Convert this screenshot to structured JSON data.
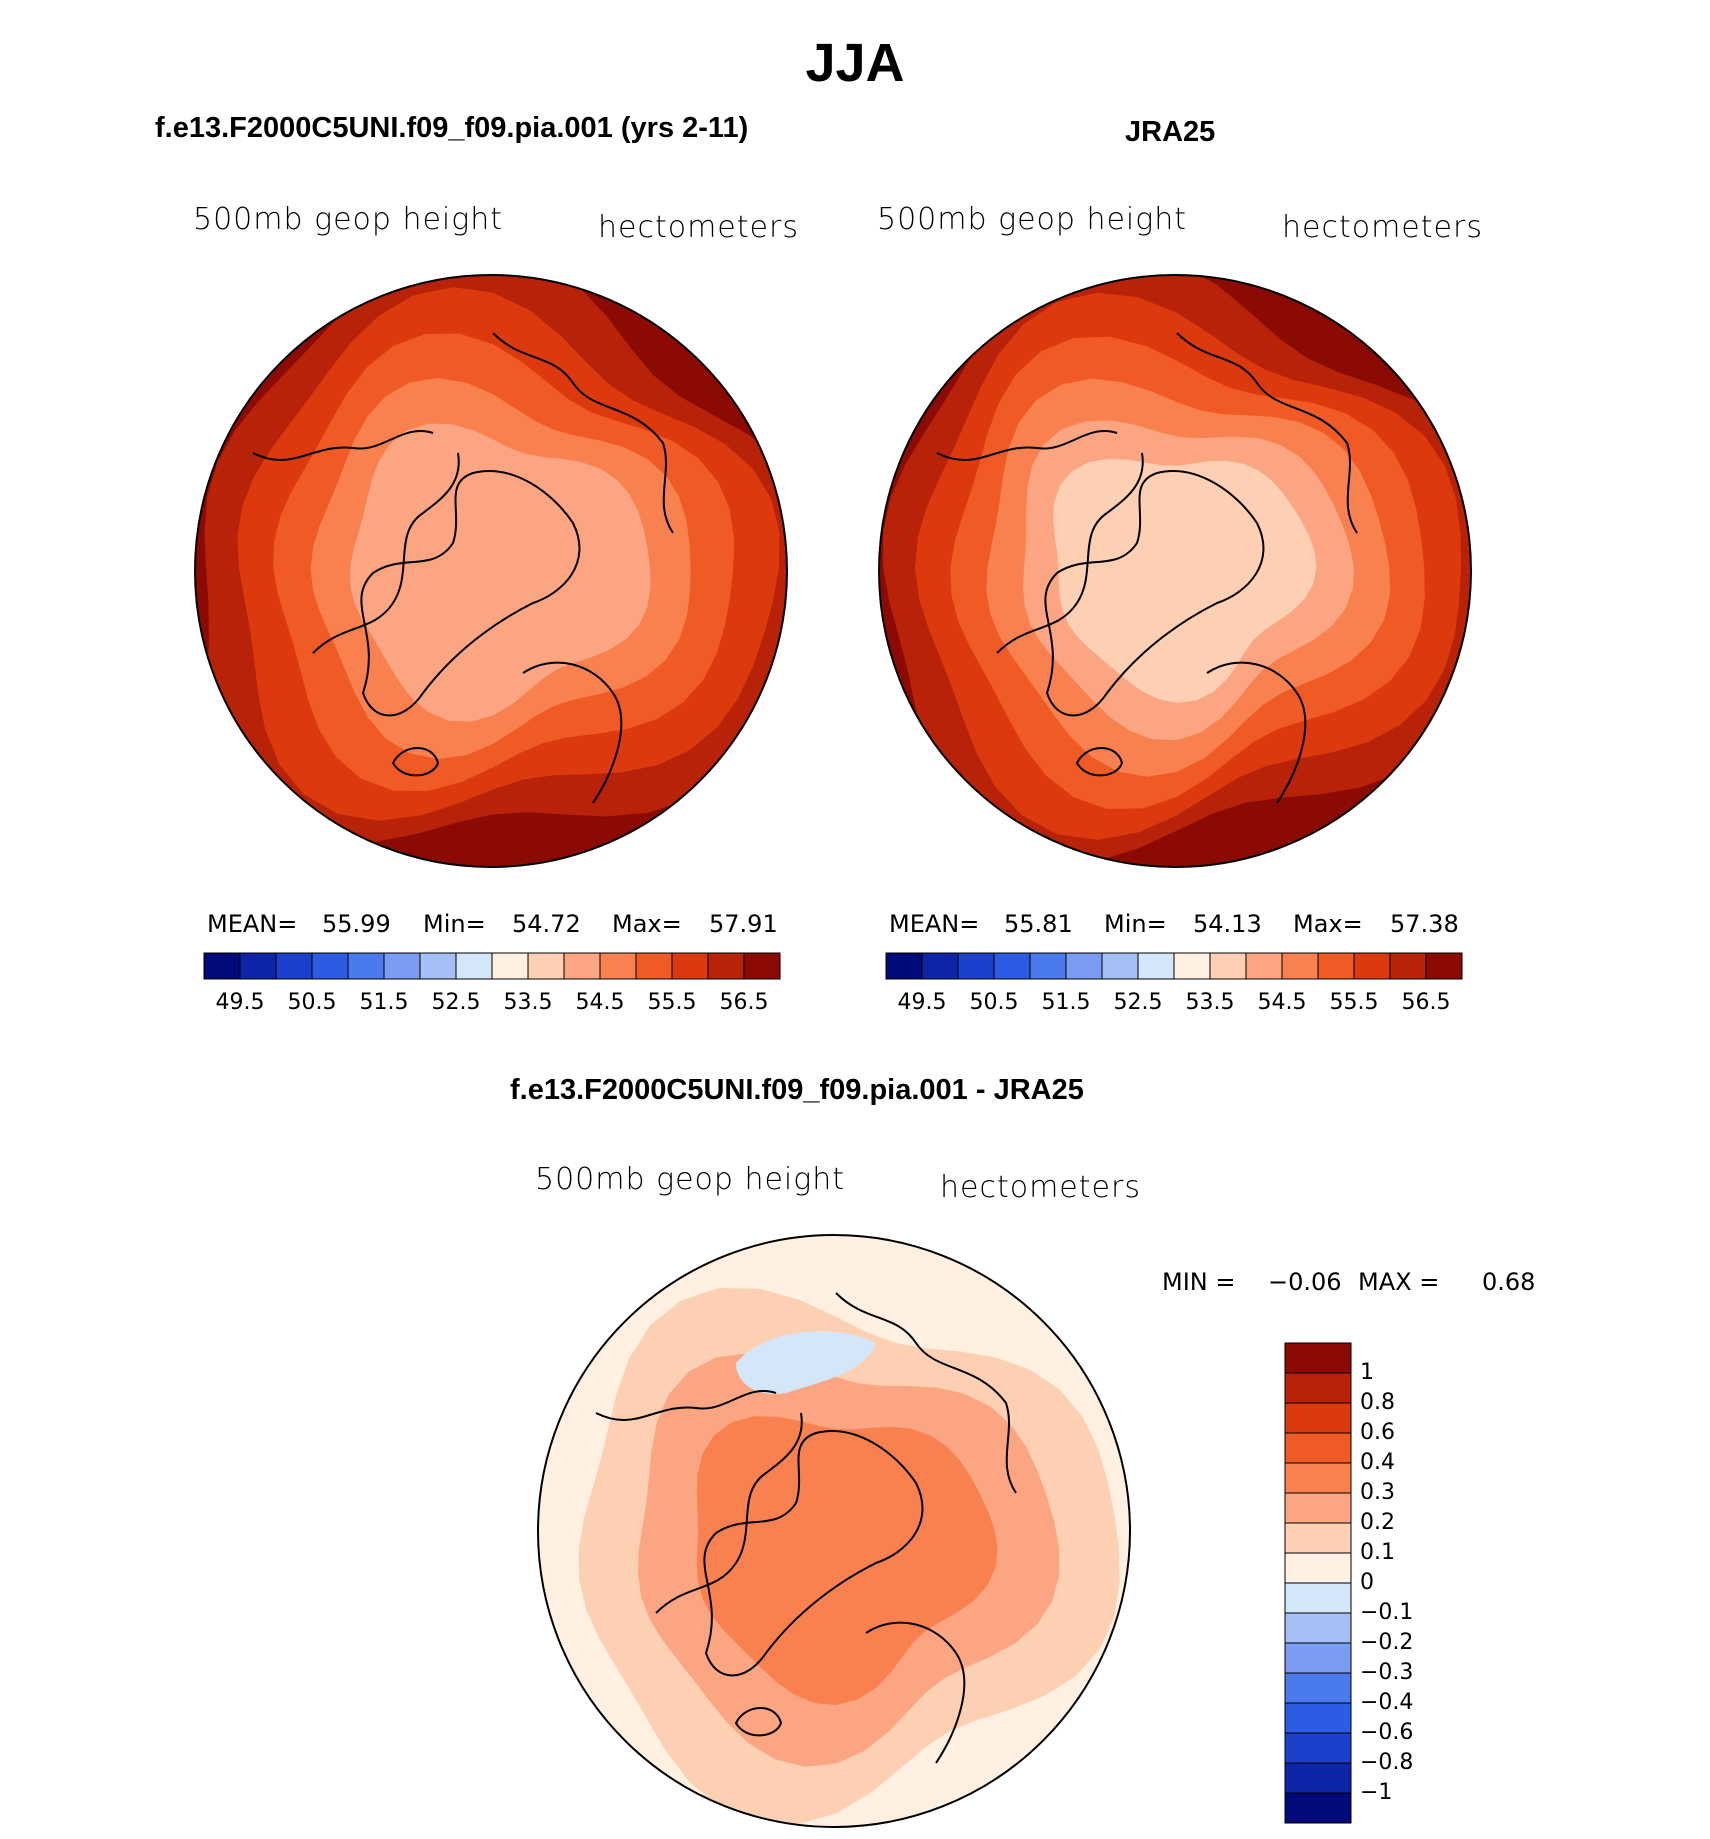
{
  "title": "JJA",
  "colors": {
    "coast": "#000000",
    "warm_scale": [
      "#fff0e1",
      "#fdd0b4",
      "#fca583",
      "#f9814f",
      "#f05b25",
      "#dc3a0e",
      "#b72208",
      "#8c0a04"
    ],
    "cool_scale": [
      "#000a78",
      "#0c24a8",
      "#1c40cc",
      "#2c5ce4",
      "#4a7aec",
      "#7a9cf2",
      "#a6c0f6",
      "#d4e6fa"
    ],
    "diff_scale": [
      "#000a78",
      "#0c24a8",
      "#1c40cc",
      "#2c5ce4",
      "#4a7aec",
      "#7a9cf2",
      "#a6c0f6",
      "#d4e6fa",
      "#fff0e1",
      "#fdd0b4",
      "#fca583",
      "#f9814f",
      "#f05b25",
      "#dc3a0e",
      "#b72208",
      "#8c0a04"
    ]
  },
  "chart_data": [
    {
      "type": "heatmap",
      "projection": "north polar stereographic",
      "title": "f.e13.F2000C5UNI.f09_f09.pia.001 (yrs 2-11)",
      "variable_label": "500mb geop height",
      "units_label": "hectometers",
      "stats": {
        "mean_label": "MEAN=",
        "mean": "55.99",
        "min_label": "Min=",
        "min": "54.72",
        "max_label": "Max=",
        "max": "57.91"
      },
      "colorbar_ticks": [
        "49.5",
        "50.5",
        "51.5",
        "52.5",
        "53.5",
        "54.5",
        "55.5",
        "56.5"
      ],
      "field_levels": [
        57.0,
        56.5,
        56.0,
        55.5,
        55.0,
        54.5
      ],
      "field_level_colors": [
        "#8c0a04",
        "#b72208",
        "#dc3a0e",
        "#f05b25",
        "#f9814f",
        "#fca583"
      ]
    },
    {
      "type": "heatmap",
      "projection": "north polar stereographic",
      "title": "JRA25",
      "variable_label": "500mb geop height",
      "units_label": "hectometers",
      "stats": {
        "mean_label": "MEAN=",
        "mean": "55.81",
        "min_label": "Min=",
        "min": "54.13",
        "max_label": "Max=",
        "max": "57.38"
      },
      "colorbar_ticks": [
        "49.5",
        "50.5",
        "51.5",
        "52.5",
        "53.5",
        "54.5",
        "55.5",
        "56.5"
      ],
      "field_levels": [
        57.0,
        56.5,
        56.0,
        55.5,
        55.0,
        54.5,
        54.0
      ],
      "field_level_colors": [
        "#8c0a04",
        "#b72208",
        "#dc3a0e",
        "#f05b25",
        "#f9814f",
        "#fca583",
        "#fdd0b4"
      ]
    },
    {
      "type": "heatmap",
      "projection": "north polar stereographic",
      "title": "f.e13.F2000C5UNI.f09_f09.pia.001 - JRA25",
      "variable_label": "500mb geop height",
      "units_label": "hectometers",
      "stats": {
        "min_label": "MIN =",
        "min": "−0.06",
        "max_label": "MAX =",
        "max": "0.68"
      },
      "colorbar_ticks": [
        "1",
        "0.8",
        "0.6",
        "0.4",
        "0.3",
        "0.2",
        "0.1",
        "0",
        "−0.1",
        "−0.2",
        "−0.3",
        "−0.4",
        "−0.6",
        "−0.8",
        "−1"
      ],
      "field_levels": [
        0.1,
        0.2,
        0.3,
        0.4
      ],
      "field_level_colors": [
        "#fff0e1",
        "#fdd0b4",
        "#fca583",
        "#f9814f"
      ]
    }
  ]
}
